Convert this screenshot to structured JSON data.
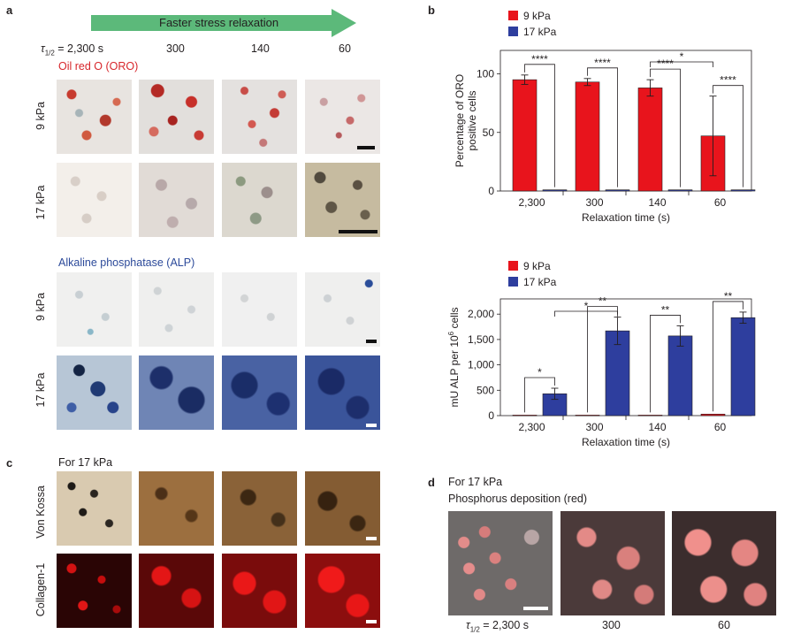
{
  "panel_a": {
    "label": "a",
    "arrow_text": "Faster stress relaxation",
    "tau_label": "τ1/2 = 2,300 s",
    "tau_sym": "τ",
    "tau_sub": "1/2",
    "tau_rest": " = 2,300 s",
    "times": [
      "300",
      "140",
      "60"
    ],
    "oro_title": "Oil red O (ORO)",
    "alp_title": "Alkaline phosphatase (ALP)",
    "row_9": "9 kPa",
    "row_17": "17 kPa",
    "colors": {
      "arrow": "#5cb97a",
      "oro_title": "#d7262b",
      "alp_title": "#2c4a9a"
    }
  },
  "panel_b": {
    "label": "b",
    "legend": [
      "9 kPa",
      "17 kPa"
    ],
    "colors": {
      "s9": "#e8141c",
      "s17": "#2e3e9e"
    },
    "chart_data": [
      {
        "type": "bar",
        "ylabel_line1": "Percentage of ORO",
        "ylabel_line2": "positive cells",
        "xlabel": "Relaxation time (s)",
        "categories": [
          "2,300",
          "300",
          "140",
          "60"
        ],
        "yticks": [
          "0",
          "50",
          "100"
        ],
        "ytick_values": [
          0,
          50,
          100
        ],
        "ylim": [
          0,
          120
        ],
        "series": [
          {
            "name": "9 kPa",
            "values": [
              95,
              93,
              88,
              47
            ],
            "errors": [
              4,
              3,
              7,
              34
            ]
          },
          {
            "name": "17 kPa",
            "values": [
              1,
              1,
              1,
              1
            ],
            "errors": [
              0,
              0,
              0,
              0
            ]
          }
        ],
        "significance": [
          {
            "between": [
              0,
              1
            ],
            "label": "****",
            "type": "within"
          },
          {
            "between": [
              2,
              3
            ],
            "label": "****",
            "type": "within"
          },
          {
            "between": [
              4,
              5
            ],
            "label": "****",
            "type": "within"
          },
          {
            "between": [
              6,
              7
            ],
            "label": "****",
            "type": "within"
          },
          {
            "between": [
              4,
              6
            ],
            "label": "*",
            "type": "across"
          }
        ]
      },
      {
        "type": "bar",
        "ylabel_pre": "mU ALP per 10",
        "ylabel_sup": "6",
        "ylabel_post": " cells",
        "xlabel": "Relaxation time (s)",
        "categories": [
          "2,300",
          "300",
          "140",
          "60"
        ],
        "yticks": [
          "0",
          "500",
          "1,000",
          "1,500",
          "2,000"
        ],
        "ytick_values": [
          0,
          500,
          1000,
          1500,
          2000
        ],
        "ylim": [
          0,
          2300
        ],
        "series": [
          {
            "name": "9 kPa",
            "values": [
              10,
              10,
              10,
              30
            ],
            "errors": [
              0,
              0,
              0,
              0
            ]
          },
          {
            "name": "17 kPa",
            "values": [
              430,
              1670,
              1570,
              1930
            ],
            "errors": [
              110,
              270,
              200,
              110
            ]
          }
        ],
        "significance": [
          {
            "between": [
              0,
              1
            ],
            "label": "*",
            "type": "within"
          },
          {
            "between": [
              2,
              3
            ],
            "label": "**",
            "type": "within"
          },
          {
            "between": [
              4,
              5
            ],
            "label": "**",
            "type": "within"
          },
          {
            "between": [
              6,
              7
            ],
            "label": "**",
            "type": "within"
          },
          {
            "between": [
              1,
              3
            ],
            "label": "*",
            "type": "across"
          }
        ]
      }
    ]
  },
  "panel_c": {
    "label": "c",
    "subtitle": "For 17 kPa",
    "row1": "Von Kossa",
    "row2": "Collagen-1"
  },
  "panel_d": {
    "label": "d",
    "subtitle": "For 17 kPa",
    "title": "Phosphorus deposition (red)",
    "tau_sym": "τ",
    "tau_sub": "1/2",
    "tau_rest": " = 2,300 s",
    "times": [
      "300",
      "60"
    ]
  }
}
